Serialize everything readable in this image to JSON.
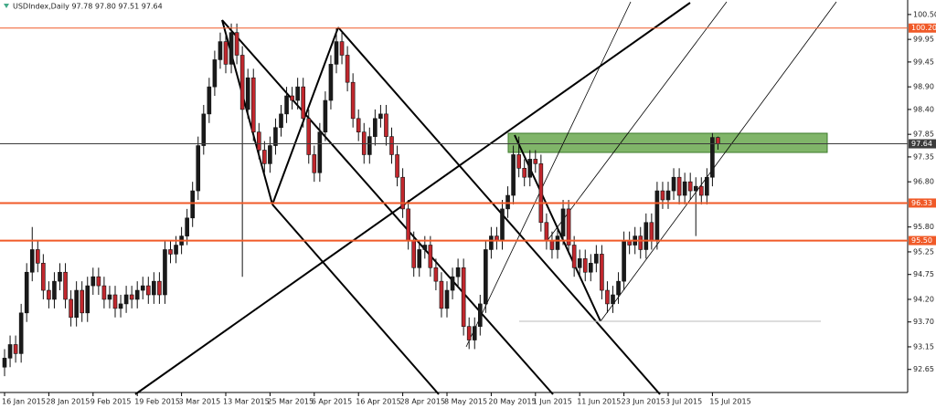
{
  "chart_data": {
    "type": "candlestick",
    "header": "USDIndex,Daily  97.78 97.80 97.51 97.64",
    "up_color": "#1a1a1a",
    "down_color": "#c1272d",
    "ylim": [
      92.14,
      100.74
    ],
    "yticks": [
      {
        "value": 100.5,
        "label": "100.50"
      },
      99.95,
      99.45,
      {
        "value": 98.9,
        "label": "98.90"
      },
      {
        "value": 98.4,
        "label": "98.40"
      },
      97.85,
      97.35,
      {
        "value": 96.8,
        "label": "96.80"
      },
      {
        "value": 95.8,
        "label": "95.80"
      },
      95.25,
      94.75,
      {
        "value": 94.2,
        "label": "94.20"
      },
      {
        "value": 93.7,
        "label": "93.70"
      },
      93.15,
      92.65
    ],
    "levels": [
      {
        "value": 100.2,
        "label": "100.20",
        "color": "#f05a28",
        "width": 1
      },
      {
        "value": 97.64,
        "color": "#3c3c3c",
        "width": 1
      },
      {
        "value": 96.33,
        "color": "#f05a28",
        "width": 2
      },
      {
        "value": 95.5,
        "label": "95.50",
        "color": "#f05a28",
        "width": 2
      }
    ],
    "categories": [
      "16 Jan 2015",
      null,
      null,
      null,
      null,
      null,
      null,
      null,
      "28 Jan 2015",
      null,
      null,
      null,
      null,
      null,
      null,
      null,
      "9 Feb 2015",
      null,
      null,
      null,
      null,
      null,
      null,
      null,
      "19 Feb 2015",
      null,
      null,
      null,
      null,
      null,
      null,
      null,
      "3 Mar 2015",
      null,
      null,
      null,
      null,
      null,
      null,
      null,
      "13 Mar 2015",
      null,
      null,
      null,
      null,
      null,
      null,
      null,
      "25 Mar 2015",
      null,
      null,
      null,
      null,
      null,
      null,
      null,
      "6 Apr 2015",
      null,
      null,
      null,
      null,
      null,
      null,
      null,
      "16 Apr 2015",
      null,
      null,
      null,
      null,
      null,
      null,
      null,
      "28 Apr 2015",
      null,
      null,
      null,
      null,
      null,
      null,
      null,
      "8 May 2015",
      null,
      null,
      null,
      null,
      null,
      null,
      null,
      "20 May 2015",
      null,
      null,
      null,
      null,
      null,
      null,
      null,
      "1 Jun 2015",
      null,
      null,
      null,
      null,
      null,
      null,
      null,
      "11 Jun 2015",
      null,
      null,
      null,
      null,
      null,
      null,
      null,
      "23 Jun 2015",
      null,
      null,
      null,
      null,
      null,
      null,
      null,
      "3 Jul 2015",
      null,
      null,
      null,
      null,
      null,
      null,
      null,
      "15 Jul 2015",
      null
    ],
    "candles": [
      [
        92.7,
        93.1,
        92.5,
        92.9
      ],
      [
        92.9,
        93.4,
        92.7,
        93.2
      ],
      [
        93.2,
        93.4,
        92.8,
        93.0
      ],
      [
        93.0,
        94.1,
        92.8,
        93.9
      ],
      [
        93.9,
        95.0,
        93.7,
        94.8
      ],
      [
        94.8,
        95.8,
        94.6,
        95.3
      ],
      [
        95.3,
        95.5,
        94.8,
        95.0
      ],
      [
        95.0,
        95.2,
        94.2,
        94.4
      ],
      [
        94.4,
        94.6,
        94.0,
        94.2
      ],
      [
        94.2,
        94.8,
        94.0,
        94.6
      ],
      [
        94.6,
        95.0,
        94.4,
        94.8
      ],
      [
        94.8,
        95.0,
        94.0,
        94.2
      ],
      [
        94.2,
        94.4,
        93.6,
        93.8
      ],
      [
        93.8,
        94.6,
        93.6,
        94.4
      ],
      [
        94.4,
        94.6,
        93.7,
        93.9
      ],
      [
        93.9,
        94.7,
        93.7,
        94.5
      ],
      [
        94.5,
        94.9,
        94.3,
        94.7
      ],
      [
        94.7,
        94.9,
        94.3,
        94.5
      ],
      [
        94.5,
        94.7,
        94.0,
        94.2
      ],
      [
        94.2,
        94.5,
        94.0,
        94.3
      ],
      [
        94.3,
        94.5,
        93.8,
        94.0
      ],
      [
        94.0,
        94.3,
        93.8,
        94.1
      ],
      [
        94.1,
        94.5,
        93.9,
        94.3
      ],
      [
        94.3,
        94.5,
        94.0,
        94.2
      ],
      [
        94.2,
        94.6,
        94.0,
        94.4
      ],
      [
        94.4,
        94.7,
        94.2,
        94.5
      ],
      [
        94.5,
        94.7,
        94.1,
        94.3
      ],
      [
        94.3,
        94.8,
        94.1,
        94.6
      ],
      [
        94.6,
        94.8,
        94.1,
        94.3
      ],
      [
        94.3,
        95.5,
        94.1,
        95.3
      ],
      [
        95.3,
        95.5,
        95.0,
        95.2
      ],
      [
        95.2,
        95.6,
        95.0,
        95.4
      ],
      [
        95.4,
        95.8,
        95.2,
        95.6
      ],
      [
        95.6,
        96.2,
        95.4,
        96.0
      ],
      [
        96.0,
        96.8,
        95.8,
        96.6
      ],
      [
        96.6,
        97.8,
        96.4,
        97.6
      ],
      [
        97.6,
        98.5,
        97.4,
        98.3
      ],
      [
        98.3,
        99.1,
        98.1,
        98.9
      ],
      [
        98.9,
        99.7,
        98.7,
        99.5
      ],
      [
        99.5,
        100.1,
        99.3,
        99.9
      ],
      [
        99.9,
        100.1,
        99.2,
        99.4
      ],
      [
        99.4,
        100.3,
        99.2,
        100.1
      ],
      [
        100.1,
        100.3,
        99.4,
        99.6
      ],
      [
        99.6,
        99.8,
        94.7,
        98.4
      ],
      [
        98.4,
        99.3,
        98.2,
        99.1
      ],
      [
        99.1,
        99.3,
        97.7,
        97.9
      ],
      [
        97.9,
        98.1,
        97.3,
        97.5
      ],
      [
        97.5,
        97.7,
        97.0,
        97.2
      ],
      [
        97.2,
        97.8,
        97.0,
        97.6
      ],
      [
        97.6,
        98.2,
        97.4,
        98.0
      ],
      [
        98.0,
        98.5,
        97.8,
        98.3
      ],
      [
        98.3,
        98.9,
        98.1,
        98.7
      ],
      [
        98.7,
        98.9,
        98.4,
        98.6
      ],
      [
        98.6,
        99.1,
        98.4,
        98.9
      ],
      [
        98.9,
        99.1,
        98.0,
        98.2
      ],
      [
        98.2,
        98.4,
        97.2,
        97.4
      ],
      [
        97.4,
        97.6,
        96.8,
        97.0
      ],
      [
        97.0,
        98.1,
        96.8,
        97.9
      ],
      [
        97.9,
        98.8,
        97.7,
        98.6
      ],
      [
        98.6,
        99.6,
        98.4,
        99.4
      ],
      [
        99.4,
        100.2,
        99.2,
        99.9
      ],
      [
        99.9,
        100.1,
        99.4,
        99.6
      ],
      [
        99.6,
        99.8,
        98.8,
        99.0
      ],
      [
        99.0,
        99.2,
        98.0,
        98.2
      ],
      [
        98.2,
        98.4,
        97.7,
        97.9
      ],
      [
        97.9,
        98.1,
        97.2,
        97.4
      ],
      [
        97.4,
        98.0,
        97.2,
        97.8
      ],
      [
        97.8,
        98.4,
        97.6,
        98.2
      ],
      [
        98.2,
        98.5,
        98.0,
        98.3
      ],
      [
        98.3,
        98.5,
        97.6,
        97.8
      ],
      [
        97.8,
        98.0,
        97.2,
        97.4
      ],
      [
        97.4,
        97.6,
        96.7,
        96.9
      ],
      [
        96.9,
        97.1,
        96.0,
        96.2
      ],
      [
        96.2,
        96.4,
        95.3,
        95.5
      ],
      [
        95.5,
        95.7,
        94.7,
        94.9
      ],
      [
        94.9,
        95.5,
        94.7,
        95.3
      ],
      [
        95.3,
        95.6,
        95.1,
        95.4
      ],
      [
        95.4,
        95.6,
        94.7,
        94.9
      ],
      [
        94.9,
        95.1,
        94.4,
        94.6
      ],
      [
        94.6,
        94.8,
        93.8,
        94.0
      ],
      [
        94.0,
        94.6,
        93.8,
        94.4
      ],
      [
        94.4,
        94.9,
        94.2,
        94.7
      ],
      [
        94.7,
        95.1,
        94.5,
        94.9
      ],
      [
        94.9,
        95.1,
        93.4,
        93.6
      ],
      [
        93.6,
        93.8,
        93.1,
        93.3
      ],
      [
        93.3,
        93.8,
        93.1,
        93.6
      ],
      [
        93.6,
        94.3,
        93.4,
        94.1
      ],
      [
        94.1,
        95.5,
        93.9,
        95.3
      ],
      [
        95.3,
        95.8,
        95.1,
        95.6
      ],
      [
        95.6,
        95.8,
        95.3,
        95.5
      ],
      [
        95.5,
        96.4,
        95.3,
        96.2
      ],
      [
        96.2,
        96.7,
        96.0,
        96.5
      ],
      [
        96.5,
        97.6,
        96.3,
        97.4
      ],
      [
        97.4,
        97.8,
        96.9,
        97.1
      ],
      [
        97.1,
        97.3,
        96.7,
        96.9
      ],
      [
        96.9,
        97.5,
        96.7,
        97.3
      ],
      [
        97.3,
        97.5,
        97.0,
        97.2
      ],
      [
        97.2,
        97.4,
        95.7,
        95.9
      ],
      [
        95.9,
        96.1,
        95.3,
        95.5
      ],
      [
        95.5,
        95.7,
        95.1,
        95.3
      ],
      [
        95.3,
        95.8,
        95.1,
        95.6
      ],
      [
        95.6,
        96.4,
        95.4,
        96.2
      ],
      [
        96.2,
        96.4,
        95.2,
        95.4
      ],
      [
        95.4,
        95.6,
        94.7,
        94.9
      ],
      [
        94.9,
        95.3,
        94.7,
        95.1
      ],
      [
        95.1,
        95.3,
        94.6,
        94.8
      ],
      [
        94.8,
        95.2,
        94.6,
        95.0
      ],
      [
        95.0,
        95.4,
        94.8,
        95.2
      ],
      [
        95.2,
        95.4,
        94.2,
        94.4
      ],
      [
        94.4,
        94.6,
        93.9,
        94.1
      ],
      [
        94.1,
        94.5,
        93.9,
        94.3
      ],
      [
        94.3,
        94.8,
        94.1,
        94.6
      ],
      [
        94.6,
        95.7,
        94.4,
        95.5
      ],
      [
        95.5,
        95.7,
        95.2,
        95.4
      ],
      [
        95.4,
        95.8,
        95.2,
        95.6
      ],
      [
        95.6,
        95.8,
        95.1,
        95.3
      ],
      [
        95.3,
        96.1,
        95.1,
        95.9
      ],
      [
        95.9,
        96.1,
        95.3,
        95.5
      ],
      [
        95.5,
        96.8,
        95.3,
        96.6
      ],
      [
        96.6,
        96.8,
        96.2,
        96.4
      ],
      [
        96.4,
        96.8,
        96.2,
        96.6
      ],
      [
        96.6,
        97.1,
        96.4,
        96.9
      ],
      [
        96.9,
        97.1,
        96.3,
        96.5
      ],
      [
        96.5,
        97.0,
        96.3,
        96.8
      ],
      [
        96.8,
        97.0,
        96.4,
        96.6
      ],
      [
        96.6,
        96.9,
        95.6,
        96.7
      ],
      [
        96.7,
        96.9,
        96.3,
        96.5
      ],
      [
        96.5,
        97.1,
        96.3,
        96.9
      ],
      [
        96.9,
        97.88,
        96.7,
        97.78
      ],
      [
        97.78,
        97.8,
        97.51,
        97.64
      ]
    ]
  }
}
